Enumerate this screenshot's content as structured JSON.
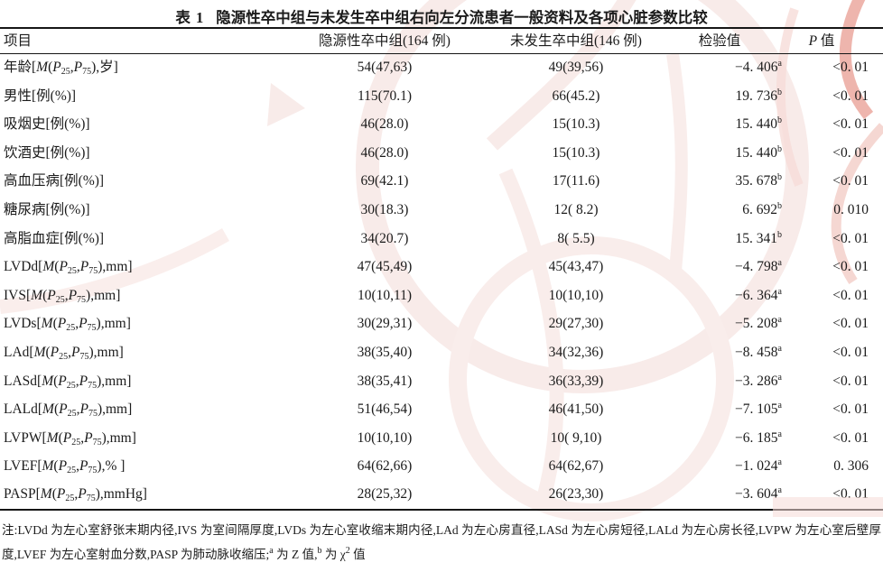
{
  "title": {
    "label": "表 1",
    "text": "隐源性卒中组与未发生卒中组右向左分流患者一般资料及各项心脏参数比较"
  },
  "table": {
    "headers": [
      {
        "segments": [
          {
            "t": "项目"
          }
        ]
      },
      {
        "segments": [
          {
            "t": "隐源性卒中组(164 例)"
          }
        ]
      },
      {
        "segments": [
          {
            "t": "未发生卒中组(146 例)"
          }
        ]
      },
      {
        "segments": [
          {
            "t": "检验值"
          }
        ]
      },
      {
        "segments": [
          {
            "i": "P"
          },
          {
            "t": " 值"
          }
        ]
      }
    ],
    "rows": [
      {
        "label": [
          {
            "t": "年龄["
          },
          {
            "i": "M"
          },
          {
            "t": "("
          },
          {
            "i": "P"
          },
          {
            "s": "25"
          },
          {
            "t": ","
          },
          {
            "i": "P"
          },
          {
            "s": "75"
          },
          {
            "t": "),岁]"
          }
        ],
        "group1": "54(47,63)",
        "group2": "49(39,56)",
        "stat": [
          {
            "t": "−4. 406"
          },
          {
            "u": "a"
          }
        ],
        "p": "<0. 01"
      },
      {
        "label": [
          {
            "t": "男性[例(%)]"
          }
        ],
        "group1": "115(70.1)",
        "group2": "66(45.2)",
        "stat": [
          {
            "t": "19. 736"
          },
          {
            "u": "b"
          }
        ],
        "p": "<0. 01"
      },
      {
        "label": [
          {
            "t": "吸烟史[例(%)]"
          }
        ],
        "group1": "46(28.0)",
        "group2": "15(10.3)",
        "stat": [
          {
            "t": "15. 440"
          },
          {
            "u": "b"
          }
        ],
        "p": "<0. 01"
      },
      {
        "label": [
          {
            "t": "饮酒史[例(%)]"
          }
        ],
        "group1": "46(28.0)",
        "group2": "15(10.3)",
        "stat": [
          {
            "t": "15. 440"
          },
          {
            "u": "b"
          }
        ],
        "p": "<0. 01"
      },
      {
        "label": [
          {
            "t": "高血压病[例(%)]"
          }
        ],
        "group1": "69(42.1)",
        "group2": "17(11.6)",
        "stat": [
          {
            "t": "35. 678"
          },
          {
            "u": "b"
          }
        ],
        "p": "<0. 01"
      },
      {
        "label": [
          {
            "t": "糖尿病[例(%)]"
          }
        ],
        "group1": "30(18.3)",
        "group2": "12( 8.2)",
        "stat": [
          {
            "t": "6. 692"
          },
          {
            "u": "b"
          }
        ],
        "p": "0. 010"
      },
      {
        "label": [
          {
            "t": "高脂血症[例(%)]"
          }
        ],
        "group1": "34(20.7)",
        "group2": "8( 5.5)",
        "stat": [
          {
            "t": "15. 341"
          },
          {
            "u": "b"
          }
        ],
        "p": "<0. 01"
      },
      {
        "label": [
          {
            "t": "LVDd["
          },
          {
            "i": "M"
          },
          {
            "t": "("
          },
          {
            "i": "P"
          },
          {
            "s": "25"
          },
          {
            "t": ","
          },
          {
            "i": "P"
          },
          {
            "s": "75"
          },
          {
            "t": "),mm]"
          }
        ],
        "group1": "47(45,49)",
        "group2": "45(43,47)",
        "stat": [
          {
            "t": "−4. 798"
          },
          {
            "u": "a"
          }
        ],
        "p": "<0. 01"
      },
      {
        "label": [
          {
            "t": "IVS["
          },
          {
            "i": "M"
          },
          {
            "t": "("
          },
          {
            "i": "P"
          },
          {
            "s": "25"
          },
          {
            "t": ","
          },
          {
            "i": "P"
          },
          {
            "s": "75"
          },
          {
            "t": "),mm]"
          }
        ],
        "group1": "10(10,11)",
        "group2": "10(10,10)",
        "stat": [
          {
            "t": "−6. 364"
          },
          {
            "u": "a"
          }
        ],
        "p": "<0. 01"
      },
      {
        "label": [
          {
            "t": "LVDs["
          },
          {
            "i": "M"
          },
          {
            "t": "("
          },
          {
            "i": "P"
          },
          {
            "s": "25"
          },
          {
            "t": ","
          },
          {
            "i": "P"
          },
          {
            "s": "75"
          },
          {
            "t": "),mm]"
          }
        ],
        "group1": "30(29,31)",
        "group2": "29(27,30)",
        "stat": [
          {
            "t": "−5. 208"
          },
          {
            "u": "a"
          }
        ],
        "p": "<0. 01"
      },
      {
        "label": [
          {
            "t": "LAd["
          },
          {
            "i": "M"
          },
          {
            "t": "("
          },
          {
            "i": "P"
          },
          {
            "s": "25"
          },
          {
            "t": ","
          },
          {
            "i": "P"
          },
          {
            "s": "75"
          },
          {
            "t": "),mm]"
          }
        ],
        "group1": "38(35,40)",
        "group2": "34(32,36)",
        "stat": [
          {
            "t": "−8. 458"
          },
          {
            "u": "a"
          }
        ],
        "p": "<0. 01"
      },
      {
        "label": [
          {
            "t": "LASd["
          },
          {
            "i": "M"
          },
          {
            "t": "("
          },
          {
            "i": "P"
          },
          {
            "s": "25"
          },
          {
            "t": ","
          },
          {
            "i": "P"
          },
          {
            "s": "75"
          },
          {
            "t": "),mm]"
          }
        ],
        "group1": "38(35,41)",
        "group2": "36(33,39)",
        "stat": [
          {
            "t": "−3. 286"
          },
          {
            "u": "a"
          }
        ],
        "p": "<0. 01"
      },
      {
        "label": [
          {
            "t": "LALd["
          },
          {
            "i": "M"
          },
          {
            "t": "("
          },
          {
            "i": "P"
          },
          {
            "s": "25"
          },
          {
            "t": ","
          },
          {
            "i": "P"
          },
          {
            "s": "75"
          },
          {
            "t": "),mm]"
          }
        ],
        "group1": "51(46,54)",
        "group2": "46(41,50)",
        "stat": [
          {
            "t": "−7. 105"
          },
          {
            "u": "a"
          }
        ],
        "p": "<0. 01"
      },
      {
        "label": [
          {
            "t": "LVPW["
          },
          {
            "i": "M"
          },
          {
            "t": "("
          },
          {
            "i": "P"
          },
          {
            "s": "25"
          },
          {
            "t": ","
          },
          {
            "i": "P"
          },
          {
            "s": "75"
          },
          {
            "t": "),mm]"
          }
        ],
        "group1": "10(10,10)",
        "group2": "10( 9,10)",
        "stat": [
          {
            "t": "−6. 185"
          },
          {
            "u": "a"
          }
        ],
        "p": "<0. 01"
      },
      {
        "label": [
          {
            "t": "LVEF["
          },
          {
            "i": "M"
          },
          {
            "t": "("
          },
          {
            "i": "P"
          },
          {
            "s": "25"
          },
          {
            "t": ","
          },
          {
            "i": "P"
          },
          {
            "s": "75"
          },
          {
            "t": "),% ]"
          }
        ],
        "group1": "64(62,66)",
        "group2": "64(62,67)",
        "stat": [
          {
            "t": "−1. 024"
          },
          {
            "u": "a"
          }
        ],
        "p": "0. 306"
      },
      {
        "label": [
          {
            "t": "PASP["
          },
          {
            "i": "M"
          },
          {
            "t": "("
          },
          {
            "i": "P"
          },
          {
            "s": "25"
          },
          {
            "t": ","
          },
          {
            "i": "P"
          },
          {
            "s": "75"
          },
          {
            "t": "),mmHg]"
          }
        ],
        "group1": "28(25,32)",
        "group2": "26(23,30)",
        "stat": [
          {
            "t": "−3. 604"
          },
          {
            "u": "a"
          }
        ],
        "p": "<0. 01"
      }
    ]
  },
  "footnote": {
    "segments": [
      {
        "t": "注:LVDd 为左心室舒张末期内径,IVS 为室间隔厚度,LVDs 为左心室收缩末期内径,LAd 为左心房直径,LASd 为左心房短径,LALd 为左心房长径,LVPW 为左心室后壁厚度,LVEF 为左心室射血分数,PASP 为肺动脉收缩压;"
      },
      {
        "u": "a"
      },
      {
        "t": " 为 Z 值,"
      },
      {
        "u": "b"
      },
      {
        "t": " 为 χ"
      },
      {
        "u": "2"
      },
      {
        "t": " 值"
      }
    ]
  },
  "watermark_colors": {
    "strong": "#e79f96",
    "light": "#f7e7e5",
    "patch": "#f6dbd7"
  }
}
